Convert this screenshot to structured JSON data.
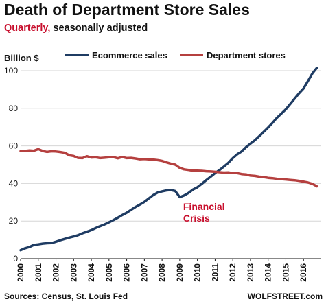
{
  "header": {
    "title": "Death of Department Store Sales",
    "subtitle_accent": "Quarterly,",
    "subtitle_rest": " seasonally adjusted"
  },
  "footer": {
    "source": "Sources: Census, St. Louis Fed",
    "brand": "WOLFSTREET.com"
  },
  "colors": {
    "ecommerce": "#1f3c63",
    "department": "#b5403f",
    "annotation": "#c8102e",
    "grid": "#d6d6d6"
  },
  "chart_data": {
    "type": "line",
    "ylabel": "Billion $",
    "ylim": [
      0,
      100
    ],
    "yticks": [
      0,
      20,
      40,
      60,
      80,
      100
    ],
    "xlim": [
      2000,
      2017
    ],
    "xtick_labels": [
      "2000",
      "2001",
      "2002",
      "2003",
      "2004",
      "2005",
      "2006",
      "2007",
      "2008",
      "2009",
      "2010",
      "2011",
      "2012",
      "2013",
      "2014",
      "2015",
      "2016"
    ],
    "grid": "horizontal",
    "legend_position": "top",
    "annotation": {
      "lines": [
        "Financial",
        "Crisis"
      ],
      "x": 2009.0,
      "y": 26
    },
    "series": [
      {
        "name": "Ecommerce sales",
        "x": [
          2000.0,
          2000.25,
          2000.5,
          2000.75,
          2001.0,
          2001.25,
          2001.5,
          2001.75,
          2002.0,
          2002.25,
          2002.5,
          2002.75,
          2003.0,
          2003.25,
          2003.5,
          2003.75,
          2004.0,
          2004.25,
          2004.5,
          2004.75,
          2005.0,
          2005.25,
          2005.5,
          2005.75,
          2006.0,
          2006.25,
          2006.5,
          2006.75,
          2007.0,
          2007.25,
          2007.5,
          2007.75,
          2008.0,
          2008.25,
          2008.5,
          2008.75,
          2009.0,
          2009.25,
          2009.5,
          2009.75,
          2010.0,
          2010.25,
          2010.5,
          2010.75,
          2011.0,
          2011.25,
          2011.5,
          2011.75,
          2012.0,
          2012.25,
          2012.5,
          2012.75,
          2013.0,
          2013.25,
          2013.5,
          2013.75,
          2014.0,
          2014.25,
          2014.5,
          2014.75,
          2015.0,
          2015.25,
          2015.5,
          2015.75,
          2016.0,
          2016.25,
          2016.5,
          2016.75
        ],
        "values": [
          4.5,
          5.5,
          6.2,
          7.3,
          7.6,
          8.0,
          8.2,
          8.3,
          9.0,
          9.8,
          10.5,
          11.2,
          11.8,
          12.5,
          13.5,
          14.3,
          15.2,
          16.3,
          17.3,
          18.2,
          19.3,
          20.5,
          21.8,
          23.2,
          24.4,
          26.0,
          27.5,
          28.8,
          30.2,
          32.0,
          33.8,
          35.2,
          35.8,
          36.3,
          36.5,
          36.0,
          32.7,
          33.6,
          35.0,
          36.8,
          38.0,
          39.8,
          41.8,
          43.6,
          45.5,
          47.2,
          49.0,
          51.0,
          53.5,
          55.5,
          57.0,
          59.3,
          61.2,
          63.0,
          65.2,
          67.5,
          69.8,
          72.3,
          75.0,
          77.2,
          79.5,
          82.3,
          85.2,
          88.0,
          90.5,
          94.5,
          98.5,
          101.5
        ]
      },
      {
        "name": "Department stores",
        "x": [
          2000.0,
          2000.25,
          2000.5,
          2000.75,
          2001.0,
          2001.25,
          2001.5,
          2001.75,
          2002.0,
          2002.25,
          2002.5,
          2002.75,
          2003.0,
          2003.25,
          2003.5,
          2003.75,
          2004.0,
          2004.25,
          2004.5,
          2004.75,
          2005.0,
          2005.25,
          2005.5,
          2005.75,
          2006.0,
          2006.25,
          2006.5,
          2006.75,
          2007.0,
          2007.25,
          2007.5,
          2007.75,
          2008.0,
          2008.25,
          2008.5,
          2008.75,
          2009.0,
          2009.25,
          2009.5,
          2009.75,
          2010.0,
          2010.25,
          2010.5,
          2010.75,
          2011.0,
          2011.25,
          2011.5,
          2011.75,
          2012.0,
          2012.25,
          2012.5,
          2012.75,
          2013.0,
          2013.25,
          2013.5,
          2013.75,
          2014.0,
          2014.25,
          2014.5,
          2014.75,
          2015.0,
          2015.25,
          2015.5,
          2015.75,
          2016.0,
          2016.25,
          2016.5,
          2016.75
        ],
        "values": [
          57.2,
          57.3,
          57.6,
          57.4,
          58.3,
          57.3,
          56.8,
          57.1,
          57.0,
          56.7,
          56.3,
          55.0,
          54.6,
          53.6,
          53.5,
          54.5,
          53.8,
          53.9,
          53.5,
          53.7,
          53.9,
          54.0,
          53.4,
          54.1,
          53.5,
          53.6,
          53.3,
          52.9,
          53.0,
          52.8,
          52.7,
          52.4,
          52.0,
          51.2,
          50.5,
          50.0,
          48.3,
          47.5,
          47.2,
          46.8,
          46.8,
          46.7,
          46.5,
          46.4,
          46.2,
          46.0,
          45.8,
          45.9,
          45.5,
          45.5,
          45.0,
          44.8,
          44.2,
          44.0,
          43.6,
          43.4,
          43.0,
          42.8,
          42.5,
          42.3,
          42.1,
          41.9,
          41.7,
          41.4,
          41.0,
          40.5,
          39.8,
          38.5
        ]
      }
    ]
  }
}
